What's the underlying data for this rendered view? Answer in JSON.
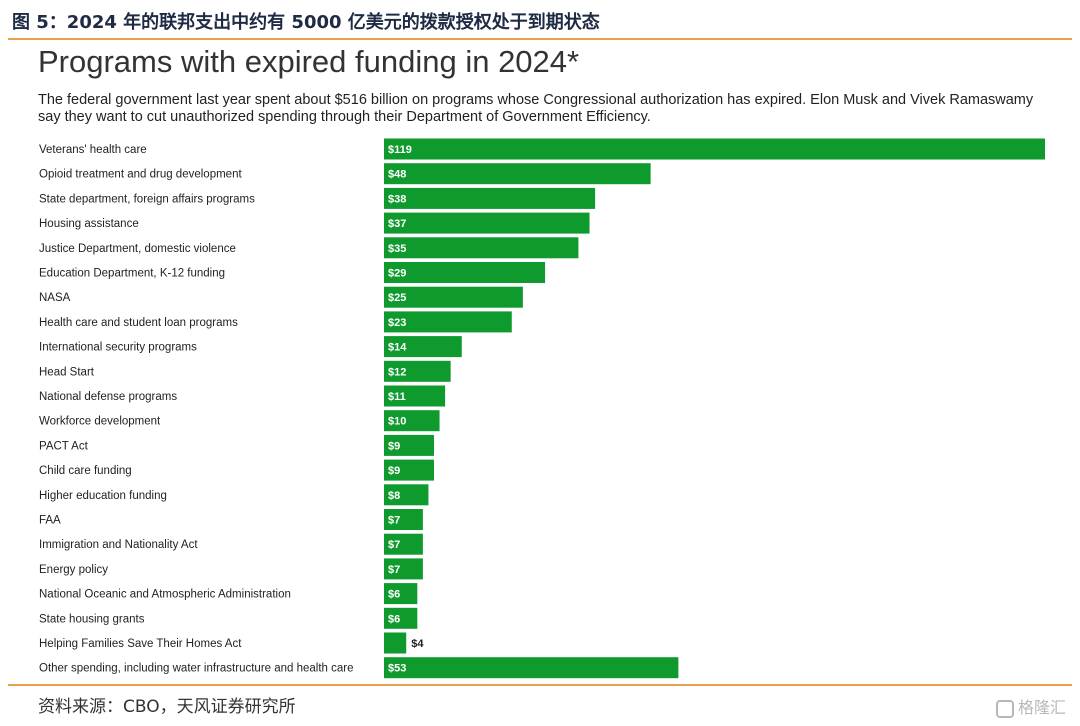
{
  "figure_caption": "图 5：2024 年的联邦支出中约有 5000 亿美元的拨款授权处于到期状态",
  "source_note": "资料来源：CBO，天风证券研究所",
  "watermark": "格隆汇",
  "colors": {
    "bar": "#0f9a2e",
    "bar_label": "#ffffff",
    "outside_label": "#222222",
    "rule": "#e8a04a"
  },
  "chart_data": {
    "type": "bar",
    "orientation": "horizontal",
    "title": "Programs with expired funding in 2024*",
    "subtitle": "The federal government last year spent about $516 billion on programs whose Congressional authorization has expired. Elon Musk and Vivek Ramaswamy say they want to cut unauthorized spending through their Department of Government Efficiency.",
    "xlabel": "",
    "ylabel": "",
    "grid": false,
    "legend": "none",
    "xlim": [
      0,
      119
    ],
    "categories": [
      "Veterans' health care",
      "Opioid treatment and drug development",
      "State department, foreign affairs programs",
      "Housing assistance",
      "Justice Department, domestic violence",
      "Education Department, K-12 funding",
      "NASA",
      "Health care and student loan programs",
      "International security programs",
      "Head Start",
      "National defense programs",
      "Workforce development",
      "PACT Act",
      "Child care funding",
      "Higher education funding",
      "FAA",
      "Immigration and Nationality Act",
      "Energy policy",
      "National Oceanic and Atmospheric Administration",
      "State housing grants",
      "Helping Families Save Their Homes Act",
      "Other spending, including water infrastructure and health care"
    ],
    "values": [
      119,
      48,
      38,
      37,
      35,
      29,
      25,
      23,
      14,
      12,
      11,
      10,
      9,
      9,
      8,
      7,
      7,
      7,
      6,
      6,
      4,
      53
    ],
    "value_labels": [
      "$119",
      "$48",
      "$38",
      "$37",
      "$35",
      "$29",
      "$25",
      "$23",
      "$14",
      "$12",
      "$11",
      "$10",
      "$9",
      "$9",
      "$8",
      "$7",
      "$7",
      "$7",
      "$6",
      "$6",
      "$4",
      "$53"
    ]
  }
}
